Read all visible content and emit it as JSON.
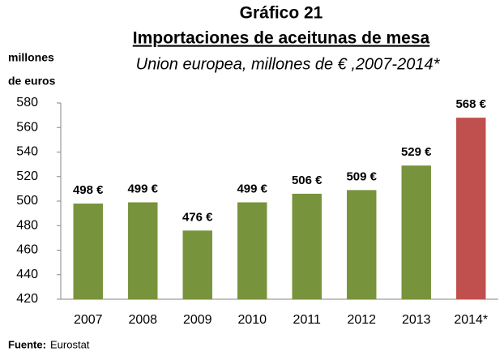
{
  "chart_data": {
    "type": "bar",
    "title": "Gráfico 21",
    "subtitle": "Importaciones de aceitunas de mesa",
    "description": "Union europea, millones de € ,2007-2014*",
    "ylabel": [
      "millones",
      "de euros"
    ],
    "source_label": "Fuente:",
    "source": "Eurostat",
    "categories": [
      "2007",
      "2008",
      "2009",
      "2010",
      "2011",
      "2012",
      "2013",
      "2014*"
    ],
    "values": [
      498,
      499,
      476,
      499,
      506,
      509,
      529,
      568
    ],
    "value_labels": [
      "498 €",
      "499 €",
      "476 €",
      "499 €",
      "506 €",
      "509 €",
      "529 €",
      "568 €"
    ],
    "colors": [
      "#77933c",
      "#77933c",
      "#77933c",
      "#77933c",
      "#77933c",
      "#77933c",
      "#77933c",
      "#c0504d"
    ],
    "ylim": [
      420,
      580
    ],
    "yticks": [
      420,
      440,
      460,
      480,
      500,
      520,
      540,
      560,
      580
    ],
    "grid": false
  }
}
